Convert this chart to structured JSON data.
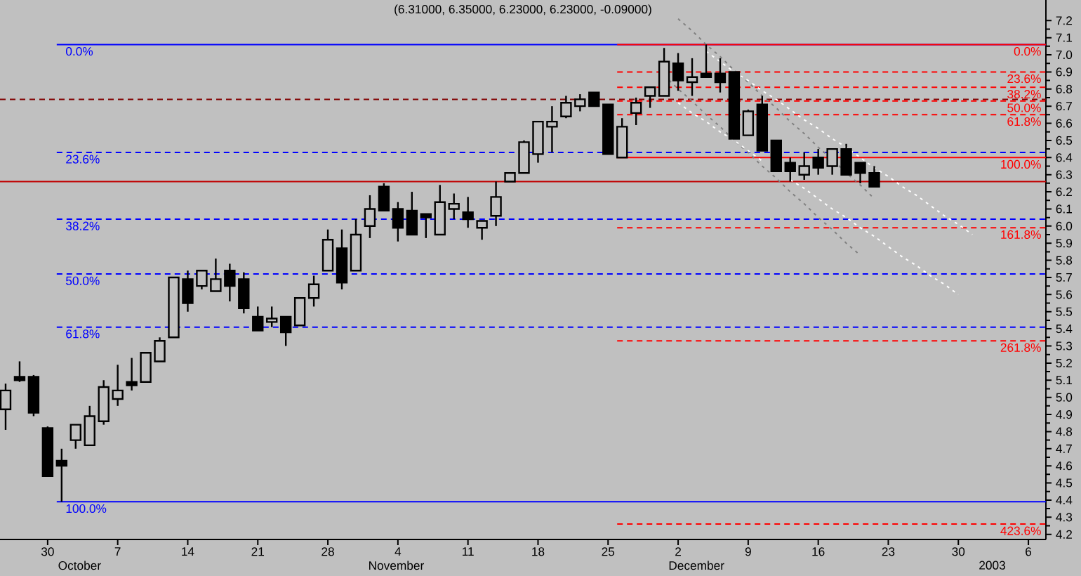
{
  "chart_data": {
    "type": "candlestick",
    "title": "(6.31000, 6.35000, 6.23000, 6.23000, -0.09000)",
    "color": "#000000",
    "categories": [
      null,
      null,
      null,
      "30",
      null,
      null,
      null,
      null,
      "7",
      null,
      null,
      null,
      null,
      "14",
      null,
      null,
      null,
      null,
      "21",
      null,
      null,
      null,
      null,
      "28",
      null,
      null,
      null,
      null,
      "4",
      null,
      null,
      null,
      null,
      "11",
      null,
      null,
      null,
      null,
      "18",
      null,
      null,
      null,
      null,
      "25",
      null,
      null,
      null,
      null,
      "2",
      null,
      null,
      null,
      null,
      "9",
      null,
      null,
      null,
      null,
      "16",
      null,
      null,
      null,
      null,
      "23",
      null,
      null,
      null,
      null,
      "30",
      null,
      null,
      null,
      null,
      "6",
      null
    ],
    "ohlc": [
      [
        4.93,
        5.08,
        4.81,
        5.04
      ],
      [
        5.12,
        5.21,
        5.09,
        5.1
      ],
      [
        5.12,
        5.13,
        4.89,
        4.91
      ],
      [
        4.82,
        4.83,
        4.54,
        4.54
      ],
      [
        4.63,
        4.7,
        4.39,
        4.6
      ],
      [
        4.75,
        4.84,
        4.7,
        4.84
      ],
      [
        4.72,
        4.95,
        4.72,
        4.89
      ],
      [
        4.86,
        5.1,
        4.84,
        5.06
      ],
      [
        4.99,
        5.19,
        4.95,
        5.04
      ],
      [
        5.09,
        5.23,
        5.04,
        5.07
      ],
      [
        5.09,
        5.26,
        5.09,
        5.26
      ],
      [
        5.21,
        5.35,
        5.21,
        5.33
      ],
      [
        5.35,
        5.7,
        5.35,
        5.7
      ],
      [
        5.69,
        5.74,
        5.5,
        5.55
      ],
      [
        5.65,
        5.74,
        5.63,
        5.74
      ],
      [
        5.62,
        5.81,
        5.62,
        5.69
      ],
      [
        5.74,
        5.78,
        5.56,
        5.65
      ],
      [
        5.69,
        5.73,
        5.49,
        5.52
      ],
      [
        5.47,
        5.53,
        5.39,
        5.39
      ],
      [
        5.44,
        5.53,
        5.41,
        5.46
      ],
      [
        5.47,
        5.47,
        5.3,
        5.38
      ],
      [
        5.42,
        5.58,
        5.42,
        5.58
      ],
      [
        5.58,
        5.71,
        5.53,
        5.66
      ],
      [
        5.74,
        5.98,
        5.74,
        5.92
      ],
      [
        5.87,
        5.98,
        5.63,
        5.67
      ],
      [
        5.74,
        6.04,
        5.74,
        5.95
      ],
      [
        6.0,
        6.18,
        5.93,
        6.1
      ],
      [
        6.23,
        6.25,
        6.09,
        6.09
      ],
      [
        6.1,
        6.14,
        5.91,
        5.99
      ],
      [
        6.09,
        6.2,
        5.95,
        5.95
      ],
      [
        6.07,
        6.07,
        5.93,
        6.05
      ],
      [
        5.95,
        6.24,
        5.95,
        6.14
      ],
      [
        6.1,
        6.19,
        6.04,
        6.13
      ],
      [
        6.08,
        6.17,
        5.99,
        6.04
      ],
      [
        5.99,
        6.03,
        5.92,
        6.03
      ],
      [
        6.06,
        6.26,
        6.0,
        6.17
      ],
      [
        6.26,
        6.31,
        6.26,
        6.31
      ],
      [
        6.31,
        6.5,
        6.31,
        6.49
      ],
      [
        6.42,
        6.61,
        6.37,
        6.61
      ],
      [
        6.58,
        6.7,
        6.43,
        6.61
      ],
      [
        6.64,
        6.76,
        6.63,
        6.72
      ],
      [
        6.7,
        6.77,
        6.67,
        6.74
      ],
      [
        6.78,
        6.78,
        6.7,
        6.7
      ],
      [
        6.71,
        6.71,
        6.42,
        6.42
      ],
      [
        6.4,
        6.63,
        6.4,
        6.58
      ],
      [
        6.66,
        6.75,
        6.59,
        6.72
      ],
      [
        6.76,
        6.81,
        6.69,
        6.81
      ],
      [
        6.76,
        7.04,
        6.76,
        6.96
      ],
      [
        6.95,
        7.01,
        6.79,
        6.85
      ],
      [
        6.84,
        6.98,
        6.76,
        6.87
      ],
      [
        6.89,
        7.06,
        6.87,
        6.87
      ],
      [
        6.89,
        6.98,
        6.78,
        6.84
      ],
      [
        6.9,
        6.9,
        6.51,
        6.51
      ],
      [
        6.53,
        6.68,
        6.53,
        6.67
      ],
      [
        6.71,
        6.76,
        6.44,
        6.44
      ],
      [
        6.5,
        6.5,
        6.32,
        6.32
      ],
      [
        6.37,
        6.4,
        6.26,
        6.32
      ],
      [
        6.3,
        6.43,
        6.27,
        6.35
      ],
      [
        6.4,
        6.45,
        6.3,
        6.34
      ],
      [
        6.35,
        6.45,
        6.3,
        6.45
      ],
      [
        6.45,
        6.48,
        6.3,
        6.3
      ],
      [
        6.37,
        6.37,
        6.25,
        6.31
      ],
      [
        6.31,
        6.35,
        6.23,
        6.23
      ],
      null,
      null,
      null,
      null,
      null,
      null,
      null,
      null,
      null,
      null,
      null,
      null
    ],
    "series": [
      {
        "type": "line",
        "color": "#808080",
        "line_style": "dotted",
        "values": [
          null,
          null,
          null,
          null,
          null,
          null,
          null,
          null,
          null,
          null,
          null,
          null,
          null,
          null,
          null,
          null,
          null,
          null,
          null,
          null,
          null,
          null,
          null,
          null,
          null,
          null,
          null,
          null,
          null,
          null,
          null,
          null,
          null,
          null,
          null,
          null,
          null,
          null,
          null,
          null,
          null,
          null,
          null,
          null,
          null,
          null,
          null,
          null,
          7.21,
          7.14,
          7.06,
          6.99,
          6.91,
          6.84,
          6.76,
          6.69,
          6.61,
          6.54,
          6.46,
          6.39,
          6.31,
          6.24,
          6.16,
          null,
          null,
          null,
          null,
          null,
          null,
          null,
          null,
          null,
          null,
          null,
          null
        ]
      },
      {
        "type": "line",
        "color": "#ffffff",
        "line_style": "dotted",
        "values": [
          null,
          null,
          null,
          null,
          null,
          null,
          null,
          null,
          null,
          null,
          null,
          null,
          null,
          null,
          null,
          null,
          null,
          null,
          null,
          null,
          null,
          null,
          null,
          null,
          null,
          null,
          null,
          null,
          null,
          null,
          null,
          null,
          null,
          null,
          null,
          null,
          null,
          null,
          null,
          null,
          null,
          null,
          null,
          null,
          null,
          null,
          null,
          null,
          null,
          null,
          7.02,
          6.96,
          6.9,
          6.85,
          6.79,
          6.74,
          6.68,
          6.62,
          6.57,
          6.51,
          6.46,
          6.4,
          6.34,
          6.29,
          6.23,
          6.18,
          6.12,
          6.06,
          6.01,
          5.95,
          null,
          null,
          null,
          null,
          null
        ]
      },
      {
        "type": "line",
        "color": "#808080",
        "line_style": "dotted",
        "values": [
          null,
          null,
          null,
          null,
          null,
          null,
          null,
          null,
          null,
          null,
          null,
          null,
          null,
          null,
          null,
          null,
          null,
          null,
          null,
          null,
          null,
          null,
          null,
          null,
          null,
          null,
          null,
          null,
          null,
          null,
          null,
          null,
          null,
          null,
          null,
          null,
          null,
          null,
          null,
          null,
          null,
          null,
          null,
          null,
          null,
          null,
          null,
          6.88,
          6.8,
          6.73,
          6.65,
          6.58,
          6.5,
          6.43,
          6.35,
          6.28,
          6.2,
          6.13,
          6.05,
          5.98,
          5.9,
          5.83,
          null,
          null,
          null,
          null,
          null,
          null,
          null,
          null,
          null,
          null,
          null,
          null,
          null
        ]
      },
      {
        "type": "line",
        "color": "#ffffff",
        "line_style": "dotted",
        "values": [
          null,
          null,
          null,
          null,
          null,
          null,
          null,
          null,
          null,
          null,
          null,
          null,
          null,
          null,
          null,
          null,
          null,
          null,
          null,
          null,
          null,
          null,
          null,
          null,
          null,
          null,
          null,
          null,
          null,
          null,
          null,
          null,
          null,
          null,
          null,
          null,
          null,
          null,
          null,
          null,
          null,
          null,
          null,
          null,
          null,
          null,
          null,
          null,
          6.72,
          6.66,
          6.61,
          6.55,
          6.5,
          6.44,
          6.38,
          null,
          6.27,
          6.22,
          6.16,
          6.1,
          6.05,
          5.99,
          5.94,
          5.88,
          5.82,
          5.77,
          5.71,
          5.66,
          5.6,
          null,
          null,
          null,
          null,
          null,
          null
        ]
      }
    ],
    "ylim": [
      4.17,
      7.32
    ],
    "yticks": [
      4.2,
      4.3,
      4.4,
      4.5,
      4.6,
      4.7,
      4.8,
      4.9,
      {
        "value": 5,
        "label": "5.0"
      },
      5.1,
      5.2,
      5.3,
      5.4,
      5.5,
      5.6,
      5.7,
      5.8,
      5.9,
      {
        "value": 6,
        "label": "6.0"
      },
      6.1,
      6.2,
      6.3,
      6.4,
      6.5,
      6.6,
      6.7,
      6.8,
      6.9,
      {
        "value": 7,
        "label": "7.0"
      },
      7.1,
      7.2
    ],
    "ref_lines": [
      {
        "axis": "y",
        "value": 7.06,
        "color": "#0000ff",
        "line_style": "solid"
      },
      {
        "axis": "y",
        "value": 6.43,
        "color": "#0000ff",
        "line_style": "dashed"
      },
      {
        "axis": "y",
        "value": 6.04,
        "color": "#0000ff",
        "line_style": "dashed"
      },
      {
        "axis": "y",
        "value": 5.72,
        "color": "#0000ff",
        "line_style": "dashed"
      },
      {
        "axis": "y",
        "value": 5.41,
        "color": "#0000ff",
        "line_style": "dashed"
      },
      {
        "axis": "y",
        "value": 4.39,
        "color": "#0000ff",
        "line_style": "solid"
      },
      {
        "axis": "y",
        "value": 6.74,
        "color": "#800000",
        "line_style": "dashed"
      },
      {
        "axis": "y",
        "value": 6.26,
        "color": "#c00000",
        "line_style": "solid"
      },
      {
        "axis": "y",
        "value": 7.06,
        "color": "#ff0000",
        "line_style": "solid"
      },
      {
        "axis": "y",
        "value": 6.9,
        "color": "#ff0000",
        "line_style": "dashed"
      },
      {
        "axis": "y",
        "value": 6.81,
        "color": "#ff0000",
        "line_style": "dashed"
      },
      {
        "axis": "y",
        "value": 6.73,
        "color": "#ff0000",
        "line_style": "dashed"
      },
      {
        "axis": "y",
        "value": 6.65,
        "color": "#ff0000",
        "line_style": "dashed"
      },
      {
        "axis": "y",
        "value": 6.4,
        "color": "#ff0000",
        "line_style": "solid"
      },
      {
        "axis": "y",
        "value": 5.99,
        "color": "#ff0000",
        "line_style": "dashed"
      },
      {
        "axis": "y",
        "value": 5.33,
        "color": "#ff0000",
        "line_style": "dashed"
      },
      {
        "axis": "y",
        "value": 4.26,
        "color": "#ff0000",
        "line_style": "dashed"
      }
    ],
    "annotations": [
      {
        "text": "0.0%",
        "y": 7.06
      },
      {
        "text": "23.6%",
        "y": 6.43
      },
      {
        "text": "38.2%",
        "y": 6.04
      },
      {
        "text": "50.0%",
        "y": 5.72
      },
      {
        "text": "61.8%",
        "y": 5.41
      },
      {
        "text": "100.0%",
        "y": 4.39
      },
      {
        "text": "0.0%",
        "y": 7.06
      },
      {
        "text": "23.6%",
        "y": 6.9
      },
      {
        "text": "38.2%",
        "y": 6.81
      },
      {
        "text": "50.0%",
        "y": 6.73
      },
      {
        "text": "61.8%",
        "y": 6.65
      },
      {
        "text": "100.0%",
        "y": 6.4
      },
      {
        "text": "161.8%",
        "y": 5.99
      },
      {
        "text": "261.8%",
        "y": 5.33
      },
      {
        "text": "423.6%",
        "y": 4.26
      },
      "October",
      "November",
      "December",
      "2003"
    ]
  }
}
